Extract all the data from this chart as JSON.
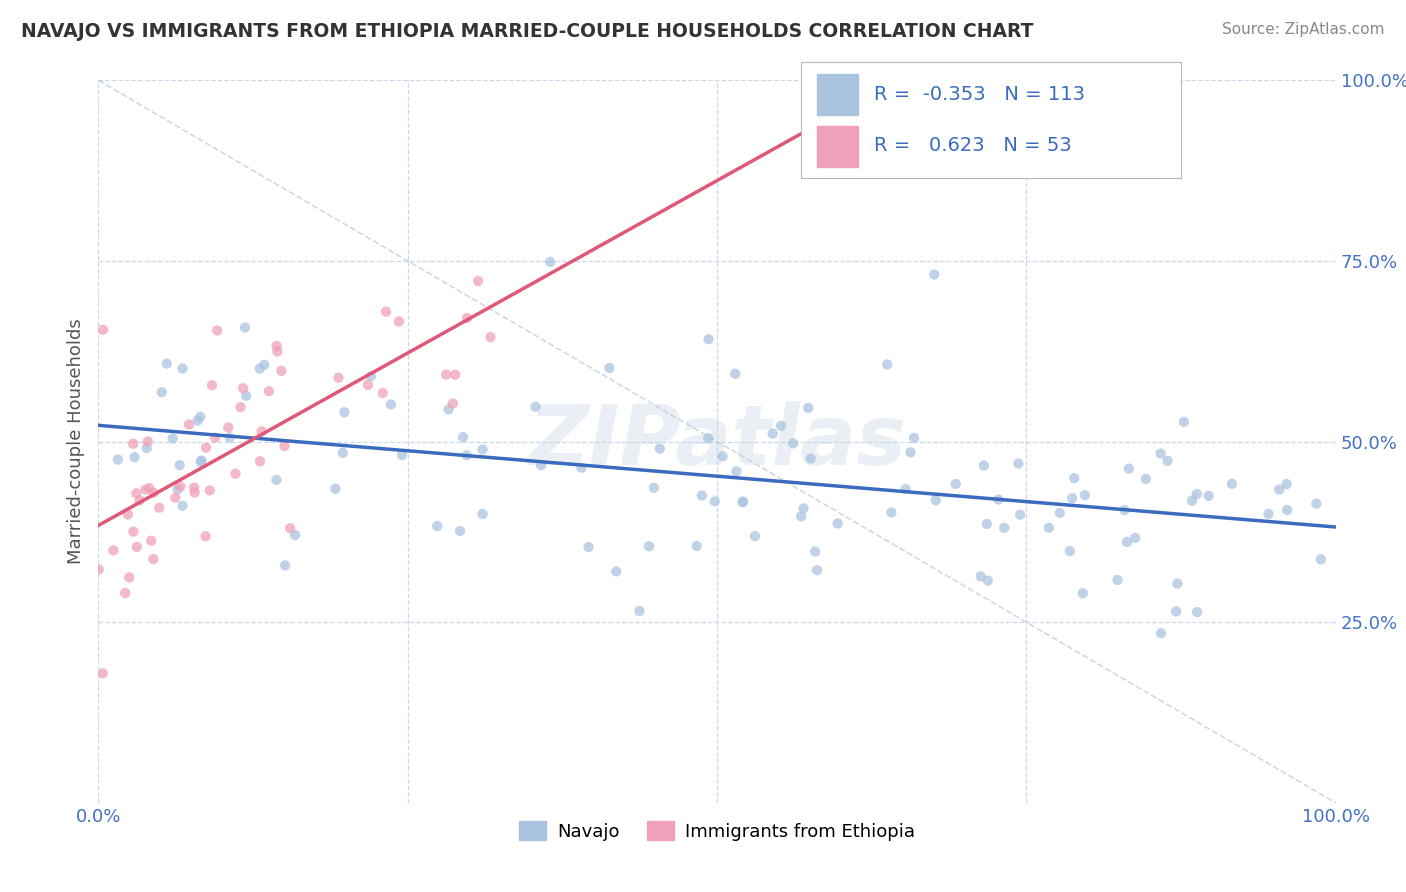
{
  "title": "NAVAJO VS IMMIGRANTS FROM ETHIOPIA MARRIED-COUPLE HOUSEHOLDS CORRELATION CHART",
  "source": "Source: ZipAtlas.com",
  "ylabel": "Married-couple Households",
  "watermark": "ZIPatlas",
  "navajo_R": -0.353,
  "navajo_N": 113,
  "ethiopia_R": 0.623,
  "ethiopia_N": 53,
  "navajo_color": "#aac4e0",
  "ethiopia_color": "#f0a0b8",
  "navajo_line_color": "#3a6bbf",
  "ethiopia_line_color": "#e05878",
  "background_color": "#ffffff",
  "grid_color": "#c8d8ea",
  "title_color": "#333333",
  "source_color": "#888888",
  "legend_text_color": "#3a6bbf",
  "ytick_color": "#4472c4",
  "xtick_color": "#4472c4"
}
